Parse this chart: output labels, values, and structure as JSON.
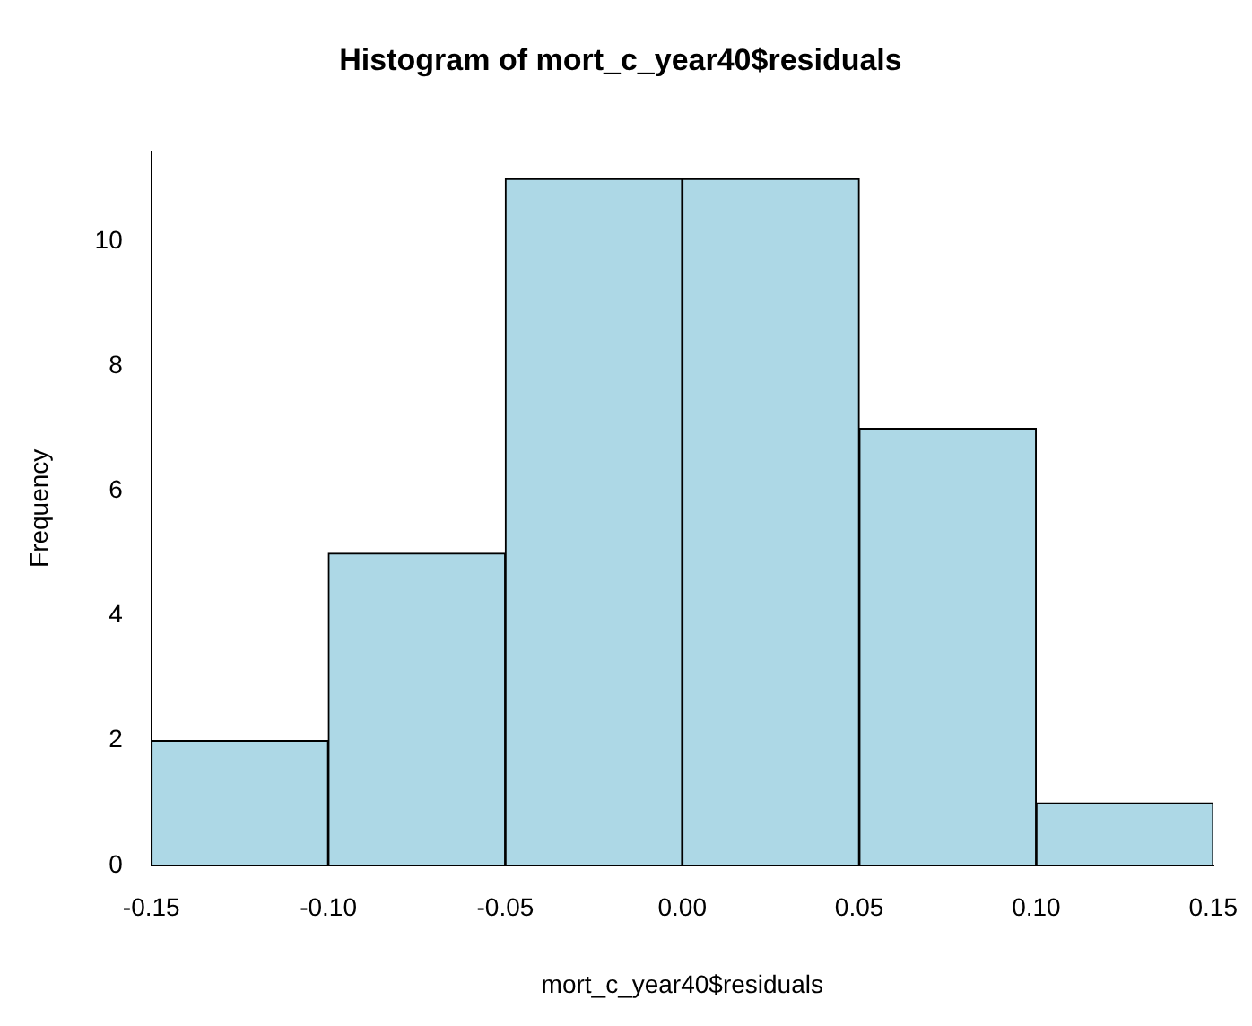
{
  "chart_data": {
    "type": "histogram",
    "title": "Histogram of mort_c_year40$residuals",
    "xlabel": "mort_c_year40$residuals",
    "ylabel": "Frequency",
    "bins": [
      -0.15,
      -0.1,
      -0.05,
      0,
      0.05,
      0.1,
      0.15
    ],
    "values": [
      2,
      5,
      11,
      11,
      7,
      1
    ],
    "color": "#add8e6",
    "xlim": [
      -0.15,
      0.15
    ],
    "xticks": [
      {
        "value": -0.15,
        "label": "-0.15"
      },
      {
        "value": -0.1,
        "label": "-0.10"
      },
      {
        "value": -0.05,
        "label": "-0.05"
      },
      {
        "value": 0,
        "label": "0.00"
      },
      {
        "value": 0.05,
        "label": "0.05"
      },
      {
        "value": 0.1,
        "label": "0.10"
      },
      {
        "value": 0.15,
        "label": "0.15"
      }
    ],
    "ylim": [
      0,
      11.44
    ],
    "yticks": [
      0,
      2,
      4,
      6,
      8,
      10
    ],
    "grid": false,
    "legend": false
  }
}
